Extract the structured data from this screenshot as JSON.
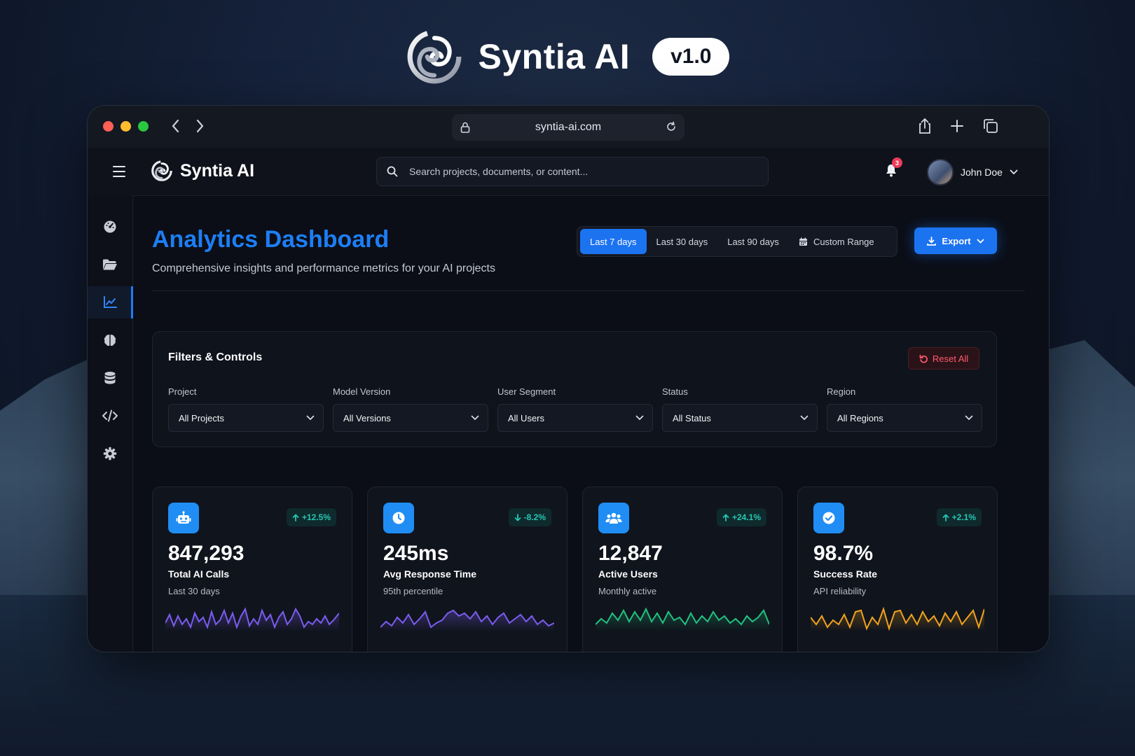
{
  "brand": {
    "name": "Syntia AI",
    "version": "v1.0"
  },
  "browser": {
    "url": "syntia-ai.com"
  },
  "topbar": {
    "app_name": "Syntia AI",
    "search_placeholder": "Search projects, documents, or content...",
    "notification_count": "3",
    "user_name": "John Doe"
  },
  "sidebar": {
    "items": [
      {
        "icon": "dashboard-icon",
        "active": false
      },
      {
        "icon": "folder-icon",
        "active": false
      },
      {
        "icon": "analytics-chart-icon",
        "active": true
      },
      {
        "icon": "brain-icon",
        "active": false
      },
      {
        "icon": "database-icon",
        "active": false
      },
      {
        "icon": "code-icon",
        "active": false
      },
      {
        "icon": "settings-gear-icon",
        "active": false
      }
    ]
  },
  "header": {
    "title": "Analytics Dashboard",
    "subtitle": "Comprehensive insights and performance metrics for your AI projects",
    "ranges": [
      "Last 7 days",
      "Last 30 days",
      "Last 90 days",
      "Custom Range"
    ],
    "active_range": "Last 7 days",
    "export_label": "Export"
  },
  "filters": {
    "title": "Filters & Controls",
    "reset_label": "Reset All",
    "fields": [
      {
        "label": "Project",
        "value": "All Projects"
      },
      {
        "label": "Model Version",
        "value": "All Versions"
      },
      {
        "label": "User Segment",
        "value": "All Users"
      },
      {
        "label": "Status",
        "value": "All Status"
      },
      {
        "label": "Region",
        "value": "All Regions"
      }
    ]
  },
  "metrics": [
    {
      "icon": "robot-icon",
      "trend": "+12.5%",
      "direction": "up",
      "value": "847,293",
      "label": "Total AI Calls",
      "sub": "Last 30 days",
      "color": "#7b5cf0"
    },
    {
      "icon": "clock-icon",
      "trend": "-8.2%",
      "direction": "down",
      "value": "245ms",
      "label": "Avg Response Time",
      "sub": "95th percentile",
      "color": "#7b5cf0"
    },
    {
      "icon": "users-icon",
      "trend": "+24.1%",
      "direction": "up",
      "value": "12,847",
      "label": "Active Users",
      "sub": "Monthly active",
      "color": "#21c27e"
    },
    {
      "icon": "check-circle-icon",
      "trend": "+2.1%",
      "direction": "up",
      "value": "98.7%",
      "label": "Success Rate",
      "sub": "API reliability",
      "color": "#f0a21e"
    }
  ],
  "colors": {
    "accent": "#1b73f0",
    "title_blue": "#1d7ef5",
    "danger": "#ff5a6e",
    "trend_teal": "#27c6b4"
  }
}
